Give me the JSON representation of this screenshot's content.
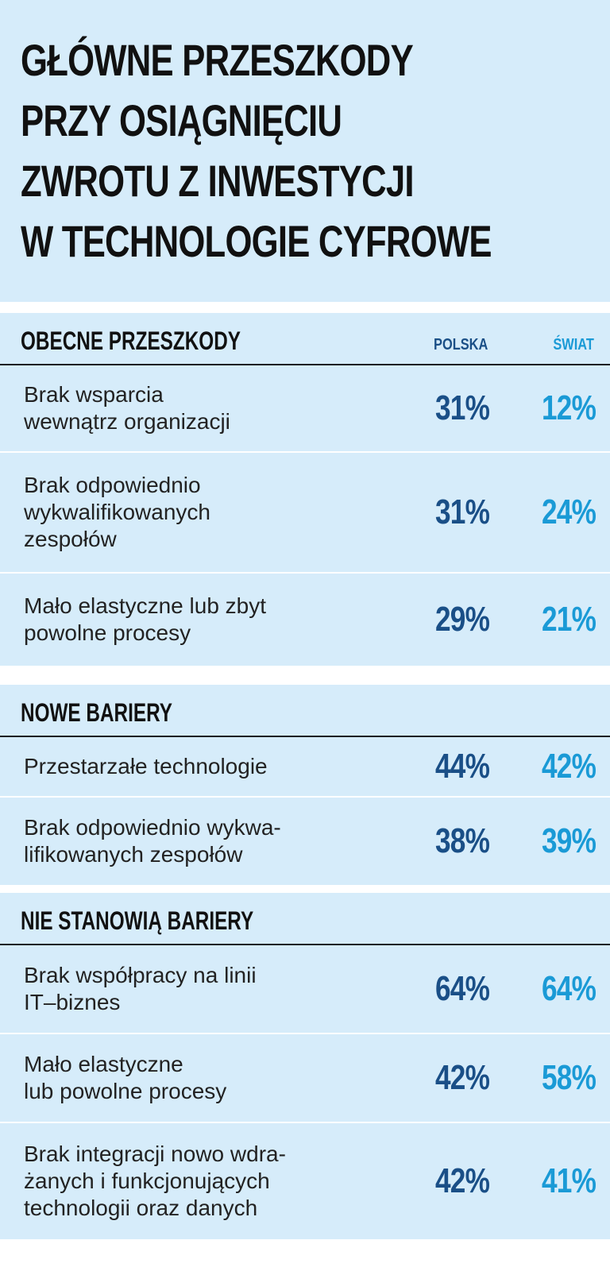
{
  "title": {
    "lines": [
      "GŁÓWNE PRZESZKODY",
      "PRZY OSIĄGNIĘCIU",
      "ZWROTU Z INWESTYCJI",
      "W TECHNOLOGIE CYFROWE"
    ]
  },
  "columns": {
    "polska": "POLSKA",
    "swiat": "ŚWIAT"
  },
  "colors": {
    "background": "#d6ecfa",
    "polska": "#1a4f87",
    "swiat": "#1a9ad6"
  },
  "chart_data": {
    "type": "table",
    "sections": [
      {
        "title": "OBECNE PRZESZKODY",
        "rows": [
          {
            "label_lines": [
              "Brak wsparcia",
              "wewnątrz organizacji"
            ],
            "polska": "31%",
            "swiat": "12%"
          },
          {
            "label_lines": [
              "Brak odpowiednio",
              "wykwalifikowanych",
              "zespołów"
            ],
            "polska": "31%",
            "swiat": "24%"
          },
          {
            "label_lines": [
              "Mało elastyczne lub zbyt",
              "powolne procesy"
            ],
            "polska": "29%",
            "swiat": "21%"
          }
        ]
      },
      {
        "title": "NOWE BARIERY",
        "rows": [
          {
            "label_lines": [
              "Przestarzałe technologie"
            ],
            "polska": "44%",
            "swiat": "42%"
          },
          {
            "label_lines": [
              "Brak odpowiednio wykwa-",
              "lifikowanych zespołów"
            ],
            "polska": "38%",
            "swiat": "39%"
          }
        ]
      },
      {
        "title": "NIE STANOWIĄ BARIERY",
        "rows": [
          {
            "label_lines": [
              "Brak współpracy na linii",
              "IT–biznes"
            ],
            "polska": "64%",
            "swiat": "64%"
          },
          {
            "label_lines": [
              "Mało elastyczne",
              "lub powolne procesy"
            ],
            "polska": "42%",
            "swiat": "58%"
          },
          {
            "label_lines": [
              "Brak integracji nowo wdra-",
              "żanych i funkcjonujących",
              "technologii oraz danych"
            ],
            "polska": "42%",
            "swiat": "41%"
          }
        ]
      }
    ]
  }
}
